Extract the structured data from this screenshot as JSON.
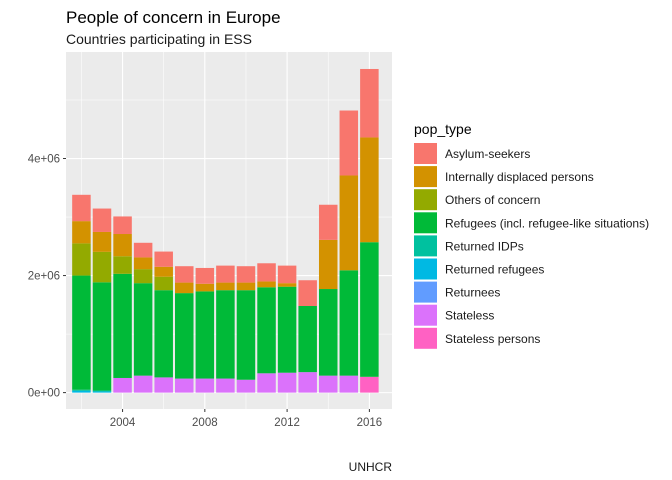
{
  "chart_data": {
    "type": "bar",
    "stacked": true,
    "title": "People of concern in Europe",
    "subtitle": "Countries participating in ESS",
    "caption": "UNHCR",
    "xlabel": "",
    "ylabel": "",
    "x_ticks": [
      2004,
      2008,
      2012,
      2016
    ],
    "y_ticks": [
      0,
      2000000,
      4000000
    ],
    "y_tick_labels": [
      "0e+00",
      "2e+06",
      "4e+06"
    ],
    "xlim": [
      2001.25,
      2017.1
    ],
    "ylim": [
      -280000,
      5820000
    ],
    "grid": true,
    "legend_position": "right",
    "legend_title": "pop_type",
    "x": [
      2002,
      2003,
      2004,
      2005,
      2006,
      2007,
      2008,
      2009,
      2010,
      2011,
      2012,
      2013,
      2014,
      2015,
      2016
    ],
    "series": [
      {
        "name": "Stateless persons",
        "color": "#FF61C3",
        "values": [
          0,
          0,
          0,
          0,
          0,
          0,
          0,
          0,
          0,
          0,
          0,
          0,
          0,
          0,
          270000
        ]
      },
      {
        "name": "Stateless",
        "color": "#DB72FB",
        "values": [
          0,
          0,
          250000,
          290000,
          260000,
          240000,
          240000,
          240000,
          220000,
          330000,
          340000,
          350000,
          290000,
          290000,
          0
        ]
      },
      {
        "name": "Returnees",
        "color": "#619CFF",
        "values": [
          0,
          0,
          0,
          0,
          0,
          0,
          0,
          0,
          0,
          0,
          0,
          0,
          0,
          0,
          0
        ]
      },
      {
        "name": "Returned refugees",
        "color": "#00B9E3",
        "values": [
          30000,
          20000,
          0,
          0,
          0,
          0,
          0,
          0,
          0,
          0,
          0,
          0,
          0,
          0,
          0
        ]
      },
      {
        "name": "Returned IDPs",
        "color": "#00C19F",
        "values": [
          20000,
          15000,
          0,
          0,
          0,
          0,
          0,
          0,
          0,
          0,
          0,
          0,
          0,
          0,
          0
        ]
      },
      {
        "name": "Refugees (incl. refugee-like situations)",
        "color": "#00BA38",
        "values": [
          1950000,
          1850000,
          1780000,
          1580000,
          1490000,
          1460000,
          1490000,
          1510000,
          1530000,
          1470000,
          1470000,
          1130000,
          1480000,
          1800000,
          2300000
        ]
      },
      {
        "name": "Others of concern",
        "color": "#93AA00",
        "values": [
          550000,
          520000,
          300000,
          240000,
          230000,
          0,
          0,
          0,
          0,
          0,
          0,
          0,
          0,
          0,
          0
        ]
      },
      {
        "name": "Internally displaced persons",
        "color": "#D39200",
        "values": [
          380000,
          340000,
          380000,
          200000,
          170000,
          180000,
          130000,
          130000,
          130000,
          100000,
          60000,
          0,
          840000,
          1620000,
          1790000
        ]
      },
      {
        "name": "Asylum-seekers",
        "color": "#F8766D",
        "values": [
          450000,
          400000,
          300000,
          250000,
          260000,
          280000,
          270000,
          290000,
          280000,
          310000,
          300000,
          440000,
          600000,
          1110000,
          1170000
        ]
      }
    ]
  }
}
